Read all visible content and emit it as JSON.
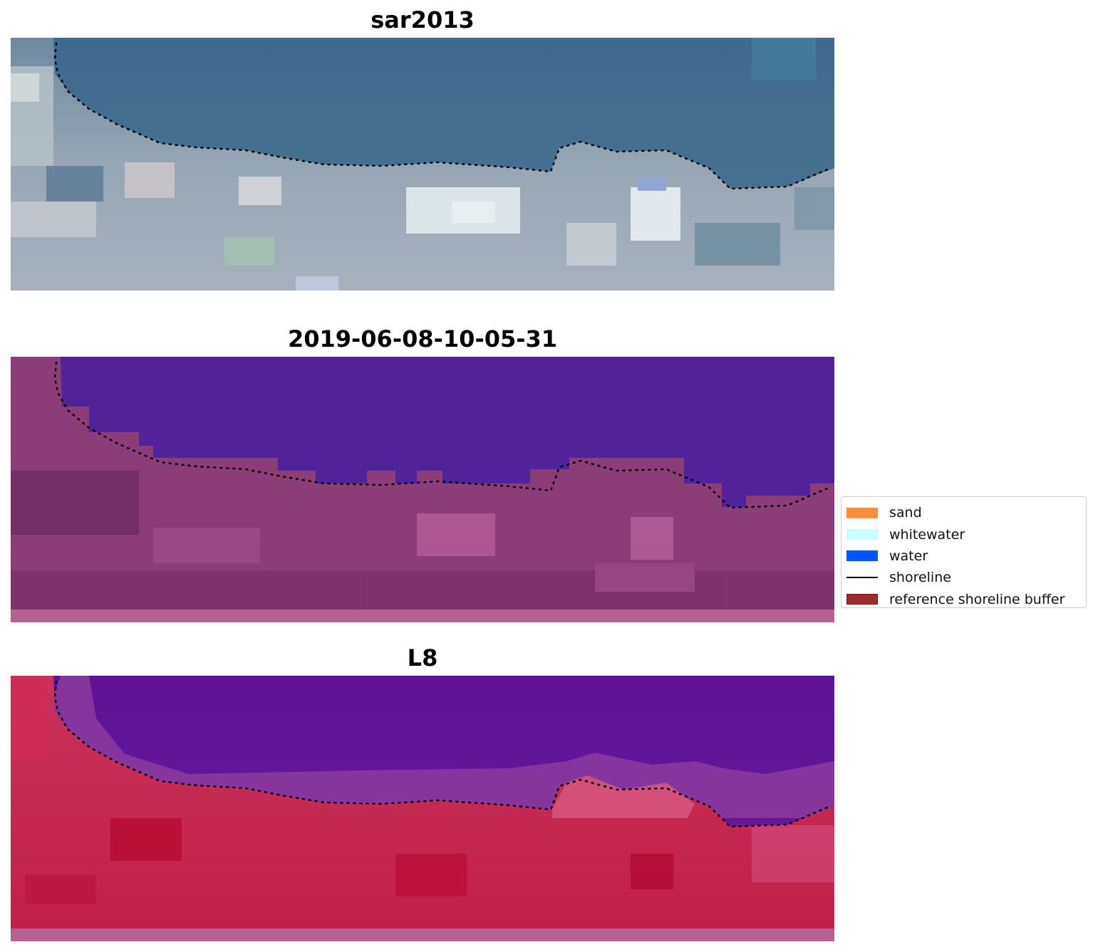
{
  "panels": [
    {
      "title": "sar2013",
      "style": "rgb"
    },
    {
      "title": "2019-06-08-10-05-31",
      "style": "classified"
    },
    {
      "title": "L8",
      "style": "false-color"
    }
  ],
  "legend": {
    "items": [
      {
        "label": "sand",
        "color": "#ff8c3c",
        "kind": "patch"
      },
      {
        "label": "whitewater",
        "color": "#c8ffff",
        "kind": "patch"
      },
      {
        "label": "water",
        "color": "#0055ff",
        "kind": "patch"
      },
      {
        "label": "shoreline",
        "color": "#000000",
        "kind": "line"
      },
      {
        "label": "reference shoreline buffer",
        "color": "#a12a2a",
        "kind": "patch"
      }
    ]
  }
}
